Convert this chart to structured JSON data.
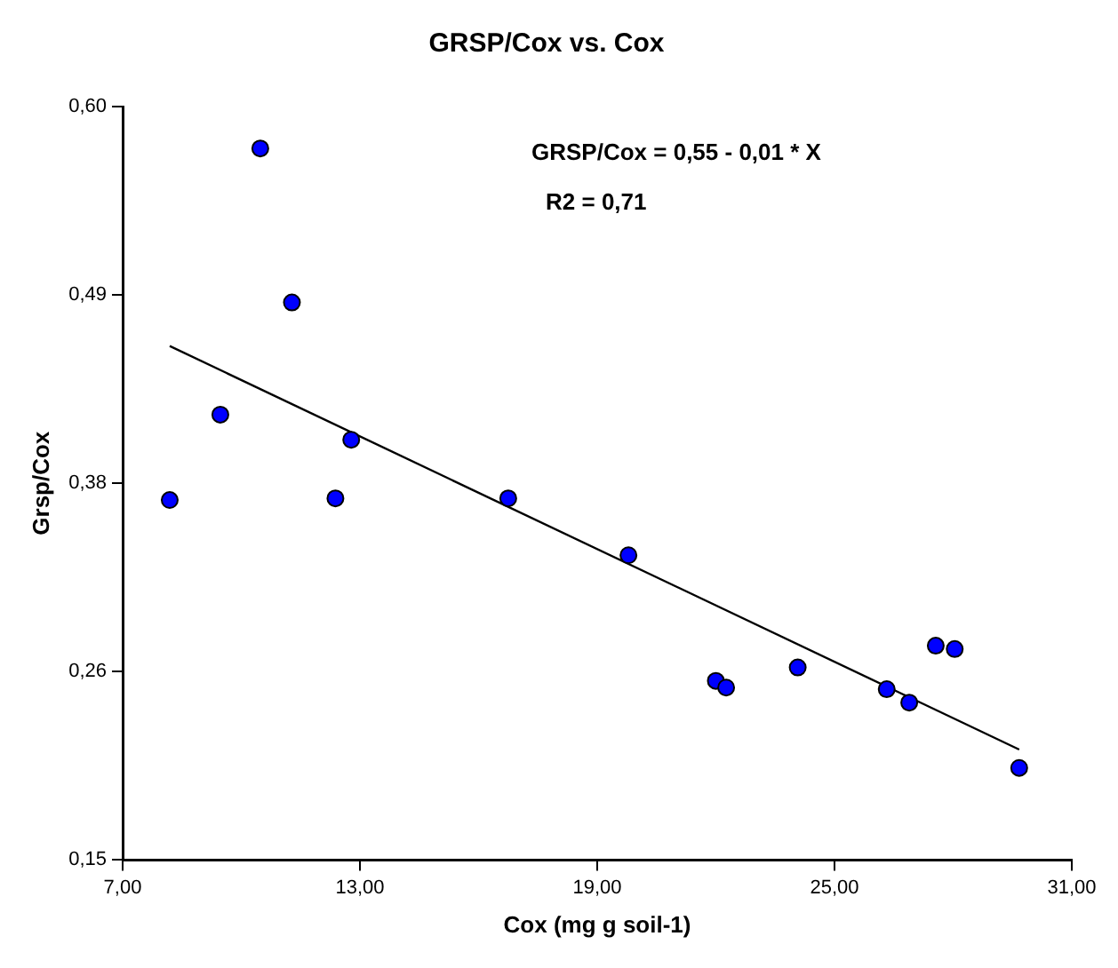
{
  "chart_data": {
    "type": "scatter",
    "title": "GRSP/Cox vs. Cox",
    "xlabel": "Cox (mg g soil-1)",
    "ylabel": "Grsp/Cox",
    "annotations": [
      "GRSP/Cox = 0,55 - 0,01 * X",
      "R2 = 0,71"
    ],
    "xlim": [
      7,
      31
    ],
    "xticks": [
      {
        "value": 7,
        "label": "7,00"
      },
      {
        "value": 13,
        "label": "13,00"
      },
      {
        "value": 19,
        "label": "19,00"
      },
      {
        "value": 25,
        "label": "25,00"
      },
      {
        "value": 31,
        "label": "31,00"
      }
    ],
    "ylim": [
      0.15,
      0.6
    ],
    "yticks": [
      {
        "value": 0.15,
        "label": "0,15"
      },
      {
        "value": 0.2625,
        "label": "0,26"
      },
      {
        "value": 0.375,
        "label": "0,38"
      },
      {
        "value": 0.4875,
        "label": "0,49"
      },
      {
        "value": 0.6,
        "label": "0,60"
      }
    ],
    "legend": false,
    "series": [
      {
        "type": "scatter",
        "color": "#0000ff",
        "marker": "circle",
        "x": [
          8.19,
          9.47,
          10.48,
          11.28,
          12.38,
          12.78,
          16.75,
          19.79,
          22.0,
          22.26,
          24.07,
          26.32,
          26.89,
          27.56,
          28.04,
          29.67
        ],
        "values": [
          0.365,
          0.416,
          0.575,
          0.483,
          0.366,
          0.401,
          0.366,
          0.332,
          0.257,
          0.253,
          0.265,
          0.252,
          0.244,
          0.278,
          0.276,
          0.205
        ]
      },
      {
        "type": "line",
        "color": "#000000",
        "marker": "none",
        "line_style": "solid",
        "x": [
          8.19,
          29.67
        ],
        "values": [
          0.457,
          0.216
        ]
      }
    ]
  }
}
